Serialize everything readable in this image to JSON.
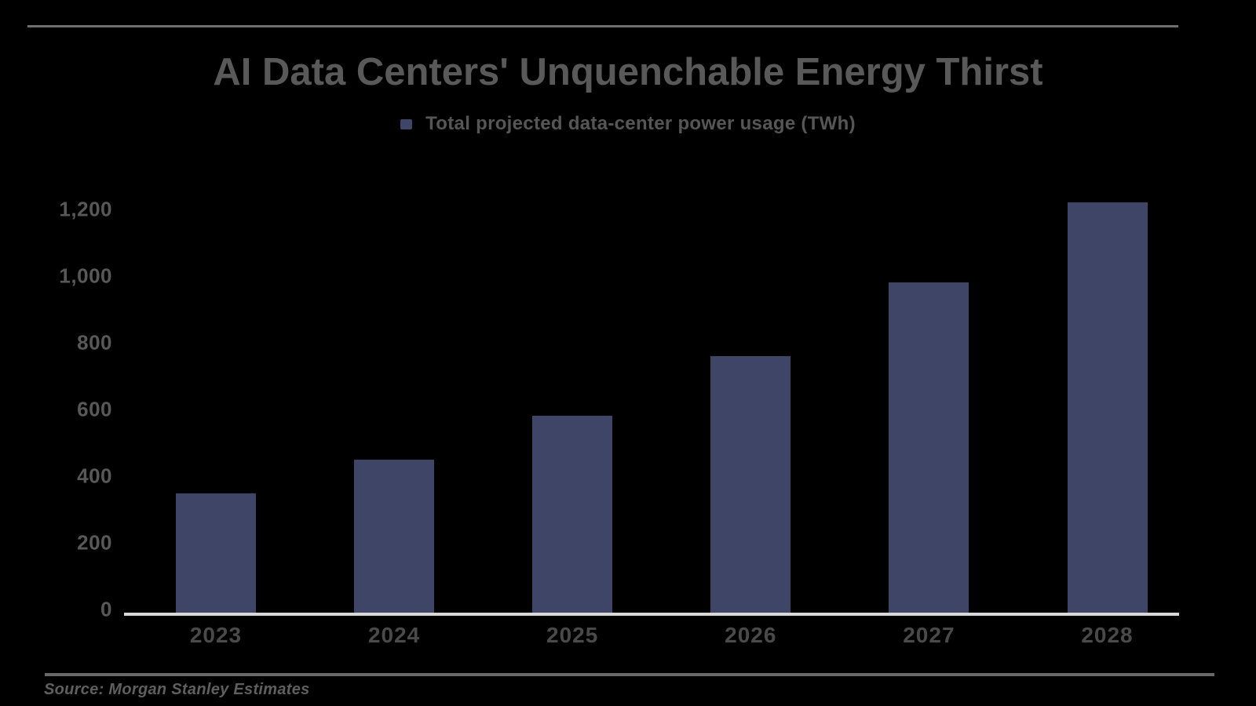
{
  "page": {
    "background": "#000000",
    "source_note": "Source: Morgan Stanley Estimates"
  },
  "chart_data": {
    "type": "bar",
    "title": "AI Data Centers' Unquenchable Energy Thirst",
    "series_name": "Total projected data-center power usage (TWh)",
    "categories": [
      "2023",
      "2024",
      "2025",
      "2026",
      "2027",
      "2028"
    ],
    "values": [
      358,
      460,
      590,
      770,
      990,
      1230
    ],
    "xlabel": "",
    "ylabel": "",
    "ylim": [
      0,
      1200
    ],
    "ytick_interval": 200,
    "ytick_labels": [
      "0",
      "200",
      "400",
      "600",
      "800",
      "1,000",
      "1,200"
    ],
    "grid": false,
    "legend_position": "top-center",
    "colors": {
      "bar": "#3e4566",
      "legend_marker": "#3e4566",
      "title_text": "#595959",
      "legend_text": "#565656",
      "ytick_text": "#585858",
      "xtick_text": "#4a4a4a",
      "axis_line": "#d8d8d8",
      "divider": "#6f6f6f",
      "source_text": "#5f5f5f",
      "background": "#000000"
    }
  }
}
